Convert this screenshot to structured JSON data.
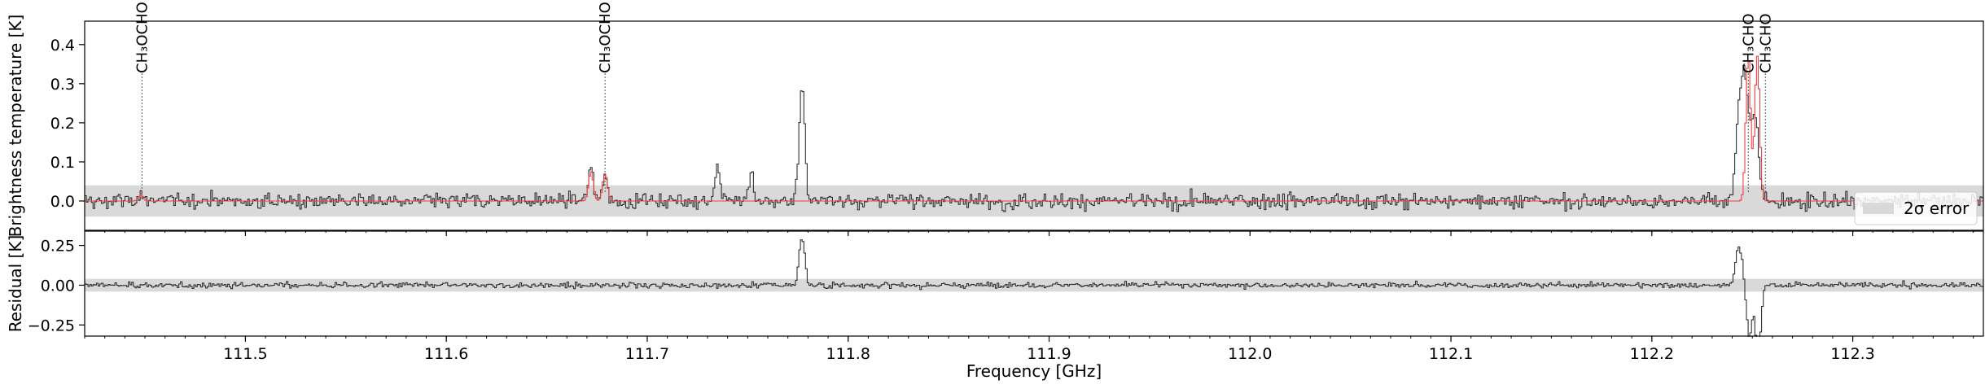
{
  "chart_data": [
    {
      "type": "line",
      "panel": "spectrum",
      "ylabel": "Brightness temperature [K]",
      "xlim": [
        111.42,
        112.365
      ],
      "ylim": [
        -0.075,
        0.46
      ],
      "yticks": [
        0.0,
        0.1,
        0.2,
        0.3,
        0.4
      ],
      "ytick_labels": [
        "0.0",
        "0.1",
        "0.2",
        "0.3",
        "0.4"
      ],
      "error_band": [
        -0.04,
        0.04
      ],
      "series": [],
      "observed_features": [
        {
          "freq": 111.448,
          "peak": 0.02
        },
        {
          "freq": 111.672,
          "peak": 0.08
        },
        {
          "freq": 111.679,
          "peak": 0.075
        },
        {
          "freq": 111.735,
          "peak": 0.08
        },
        {
          "freq": 111.752,
          "peak": 0.065
        },
        {
          "freq": 111.776,
          "peak": 0.12
        },
        {
          "freq": 111.7775,
          "peak": 0.23
        },
        {
          "freq": 112.2425,
          "peak": 0.16
        },
        {
          "freq": 112.2445,
          "peak": 0.17
        },
        {
          "freq": 112.246,
          "peak": 0.21
        },
        {
          "freq": 112.248,
          "peak": 0.18
        },
        {
          "freq": 112.2505,
          "peak": 0.16
        },
        {
          "freq": 112.2525,
          "peak": 0.14
        }
      ],
      "model_features": [
        {
          "freq": 111.448,
          "peak": 0.015
        },
        {
          "freq": 111.672,
          "peak": 0.075
        },
        {
          "freq": 111.679,
          "peak": 0.07
        },
        {
          "freq": 112.248,
          "peak": 0.37
        },
        {
          "freq": 112.2525,
          "peak": 0.37
        }
      ],
      "line_markers": [
        {
          "freq": 111.4485,
          "label": "CH₃OCHO"
        },
        {
          "freq": 111.679,
          "label": "CH₃OCHO"
        },
        {
          "freq": 112.248,
          "label": "CH₃CHO"
        },
        {
          "freq": 112.2565,
          "label": "CH₃CHO"
        }
      ],
      "legend": {
        "entries": [
          "2σ error"
        ],
        "placement": "lower-right"
      },
      "colors": {
        "observed": "#303030",
        "model": "#ee4040",
        "band": "#d9d9d9"
      }
    },
    {
      "type": "line",
      "panel": "residual",
      "xlabel": "Frequency [GHz]",
      "ylabel": "Residual [K]",
      "xlim": [
        111.42,
        112.365
      ],
      "ylim": [
        -0.32,
        0.34
      ],
      "yticks": [
        -0.25,
        0.0,
        0.25
      ],
      "ytick_labels": [
        "−0.25",
        "0.00",
        "0.25"
      ],
      "xticks": [
        111.5,
        111.6,
        111.7,
        111.8,
        111.9,
        112.0,
        112.1,
        112.2,
        112.3
      ],
      "xtick_labels": [
        "111.5",
        "111.6",
        "111.7",
        "111.8",
        "111.9",
        "112.0",
        "112.1",
        "112.2",
        "112.3"
      ],
      "error_band": [
        -0.04,
        0.04
      ],
      "series": [],
      "residual_features": [
        {
          "freq": 111.776,
          "value": 0.12
        },
        {
          "freq": 111.7775,
          "value": 0.23
        },
        {
          "freq": 112.2425,
          "value": 0.17
        },
        {
          "freq": 112.2445,
          "value": 0.15
        },
        {
          "freq": 112.248,
          "value": -0.15
        },
        {
          "freq": 112.249,
          "value": -0.2
        },
        {
          "freq": 112.2525,
          "value": -0.28
        },
        {
          "freq": 112.2535,
          "value": -0.22
        }
      ]
    }
  ]
}
